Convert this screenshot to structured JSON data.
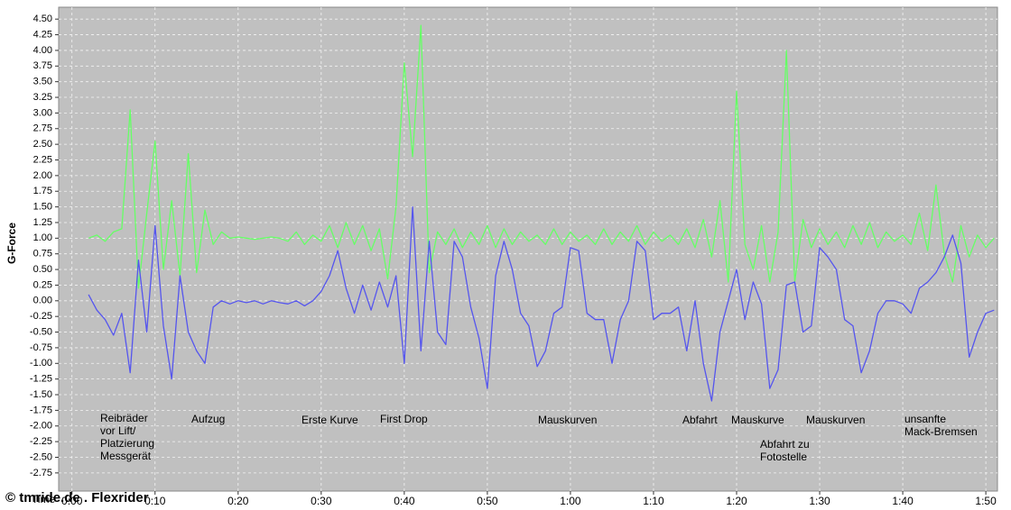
{
  "chart_data": {
    "type": "line",
    "y_label": "G-Force",
    "x_label": "Time",
    "watermark": "© tmride.de . Flexrider",
    "grid": true,
    "xlim": [
      -1.6,
      111.4
    ],
    "ylim": [
      -3.04,
      4.69
    ],
    "xticks": [
      {
        "value": 0,
        "label": "0:00"
      },
      {
        "value": 10,
        "label": "0:10"
      },
      {
        "value": 20,
        "label": "0:20"
      },
      {
        "value": 30,
        "label": "0:30"
      },
      {
        "value": 40,
        "label": "0:40"
      },
      {
        "value": 50,
        "label": "0:50"
      },
      {
        "value": 60,
        "label": "1:00"
      },
      {
        "value": 70,
        "label": "1:10"
      },
      {
        "value": 80,
        "label": "1:20"
      },
      {
        "value": 90,
        "label": "1:30"
      },
      {
        "value": 100,
        "label": "1:40"
      },
      {
        "value": 110,
        "label": "1:50"
      }
    ],
    "yticks": [
      {
        "value": 4.5,
        "label": "4.50"
      },
      {
        "value": 4.25,
        "label": "4.25"
      },
      {
        "value": 4,
        "label": "4.00"
      },
      {
        "value": 3.75,
        "label": "3.75"
      },
      {
        "value": 3.5,
        "label": "3.50"
      },
      {
        "value": 3.25,
        "label": "3.25"
      },
      {
        "value": 3,
        "label": "3.00"
      },
      {
        "value": 2.75,
        "label": "2.75"
      },
      {
        "value": 2.5,
        "label": "2.50"
      },
      {
        "value": 2.25,
        "label": "2.25"
      },
      {
        "value": 2,
        "label": "2.00"
      },
      {
        "value": 1.75,
        "label": "1.75"
      },
      {
        "value": 1.5,
        "label": "1.50"
      },
      {
        "value": 1.25,
        "label": "1.25"
      },
      {
        "value": 1,
        "label": "1.00"
      },
      {
        "value": 0.75,
        "label": "0.75"
      },
      {
        "value": 0.5,
        "label": "0.50"
      },
      {
        "value": 0.25,
        "label": "0.25"
      },
      {
        "value": 0,
        "label": "0.00"
      },
      {
        "value": -0.25,
        "label": "-0.25"
      },
      {
        "value": -0.5,
        "label": "-0.50"
      },
      {
        "value": -0.75,
        "label": "-0.75"
      },
      {
        "value": -1,
        "label": "-1.00"
      },
      {
        "value": -1.25,
        "label": "-1.25"
      },
      {
        "value": -1.5,
        "label": "-1.50"
      },
      {
        "value": -1.75,
        "label": "-1.75"
      },
      {
        "value": -2,
        "label": "-2.00"
      },
      {
        "value": -2.25,
        "label": "-2.25"
      },
      {
        "value": -2.5,
        "label": "-2.50"
      },
      {
        "value": -2.75,
        "label": "-2.75"
      }
    ],
    "annotations": [
      [
        "Reibräder",
        "vor Lift/",
        "Platzierung",
        "Messgerät"
      ],
      [
        "Aufzug"
      ],
      [
        "Erste Kurve"
      ],
      [
        "First Drop"
      ],
      [
        "Mauskurven"
      ],
      [
        "Abfahrt"
      ],
      [
        "Mauskurve"
      ],
      [
        "Abfahrt zu",
        "Fotostelle"
      ],
      [
        "Mauskurven"
      ],
      [
        "unsanfte",
        "Mack-Bremsen"
      ]
    ],
    "x": [
      2,
      3,
      4,
      5,
      6,
      7,
      8,
      9,
      10,
      11,
      12,
      13,
      14,
      15,
      16,
      17,
      18,
      19,
      20,
      21,
      22,
      23,
      24,
      25,
      26,
      27,
      28,
      29,
      30,
      31,
      32,
      33,
      34,
      35,
      36,
      37,
      38,
      39,
      40,
      41,
      42,
      43,
      44,
      45,
      46,
      47,
      48,
      49,
      50,
      51,
      52,
      53,
      54,
      55,
      56,
      57,
      58,
      59,
      60,
      61,
      62,
      63,
      64,
      65,
      66,
      67,
      68,
      69,
      70,
      71,
      72,
      73,
      74,
      75,
      76,
      77,
      78,
      79,
      80,
      81,
      82,
      83,
      84,
      85,
      86,
      87,
      88,
      89,
      90,
      91,
      92,
      93,
      94,
      95,
      96,
      97,
      98,
      99,
      100,
      101,
      102,
      103,
      104,
      105,
      106,
      107,
      108,
      109,
      110,
      111
    ],
    "series": [
      {
        "color": "#66ff66",
        "values": [
          1.0,
          1.05,
          0.95,
          1.1,
          1.15,
          3.05,
          0.2,
          1.4,
          2.55,
          0.5,
          1.6,
          0.4,
          2.35,
          0.45,
          1.45,
          0.9,
          1.1,
          1.0,
          1.02,
          1.0,
          0.98,
          1.0,
          1.02,
          1.0,
          0.95,
          1.1,
          0.9,
          1.05,
          0.95,
          1.2,
          0.85,
          1.25,
          0.9,
          1.2,
          0.8,
          1.15,
          0.35,
          1.5,
          3.8,
          2.3,
          4.4,
          0.45,
          1.1,
          0.9,
          1.15,
          0.85,
          1.1,
          0.9,
          1.2,
          0.85,
          1.15,
          0.9,
          1.1,
          0.95,
          1.05,
          0.9,
          1.15,
          0.9,
          1.1,
          0.95,
          1.05,
          0.9,
          1.15,
          0.9,
          1.1,
          0.95,
          1.2,
          0.9,
          1.1,
          0.95,
          1.05,
          0.9,
          1.15,
          0.85,
          1.3,
          0.7,
          1.6,
          0.3,
          3.35,
          0.9,
          0.5,
          1.2,
          0.3,
          1.1,
          4.0,
          0.3,
          1.3,
          0.85,
          1.15,
          0.9,
          1.1,
          0.85,
          1.2,
          0.9,
          1.25,
          0.85,
          1.1,
          0.95,
          1.05,
          0.9,
          1.4,
          0.8,
          1.85,
          0.75,
          0.3,
          1.2,
          0.7,
          1.05,
          0.85,
          1.0
        ]
      },
      {
        "color": "#5555ee",
        "values": [
          0.1,
          -0.15,
          -0.3,
          -0.55,
          -0.2,
          -1.15,
          0.65,
          -0.5,
          1.2,
          -0.4,
          -1.25,
          0.4,
          -0.5,
          -0.8,
          -1.0,
          -0.1,
          0.0,
          -0.05,
          0.0,
          -0.03,
          0.0,
          -0.05,
          0.0,
          -0.03,
          -0.05,
          0.0,
          -0.08,
          0.0,
          0.15,
          0.4,
          0.8,
          0.2,
          -0.2,
          0.25,
          -0.15,
          0.3,
          -0.1,
          0.4,
          -1.0,
          1.5,
          -0.8,
          0.95,
          -0.5,
          -0.7,
          0.95,
          0.7,
          -0.1,
          -0.6,
          -1.4,
          0.4,
          0.95,
          0.5,
          -0.2,
          -0.4,
          -1.05,
          -0.8,
          -0.2,
          -0.1,
          0.85,
          0.8,
          -0.2,
          -0.3,
          -0.3,
          -1.0,
          -0.3,
          0.0,
          0.95,
          0.8,
          -0.3,
          -0.2,
          -0.2,
          -0.1,
          -0.8,
          0.0,
          -1.0,
          -1.6,
          -0.5,
          0.0,
          0.5,
          -0.3,
          0.3,
          -0.05,
          -1.4,
          -1.1,
          0.25,
          0.3,
          -0.5,
          -0.4,
          0.85,
          0.7,
          0.5,
          -0.3,
          -0.4,
          -1.15,
          -0.8,
          -0.2,
          0.0,
          0.0,
          -0.05,
          -0.2,
          0.2,
          0.3,
          0.45,
          0.7,
          1.05,
          0.6,
          -0.9,
          -0.5,
          -0.2,
          -0.15
        ]
      }
    ]
  }
}
